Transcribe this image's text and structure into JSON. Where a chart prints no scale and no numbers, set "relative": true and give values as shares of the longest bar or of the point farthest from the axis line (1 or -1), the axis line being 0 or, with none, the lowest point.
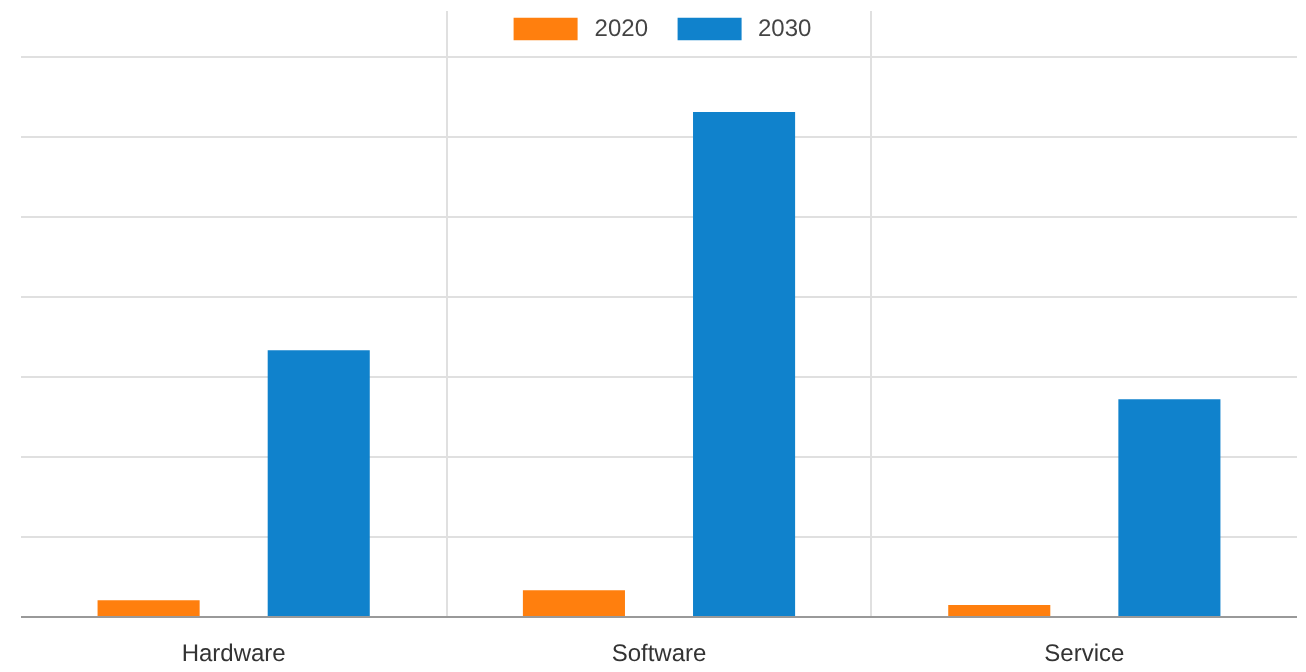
{
  "chart_data": {
    "type": "bar",
    "relative": true,
    "categories": [
      "Hardware",
      "Software",
      "Service"
    ],
    "series": [
      {
        "name": "2020",
        "color": "#ff7f0e",
        "values": [
          0.033,
          0.053,
          0.024
        ]
      },
      {
        "name": "2030",
        "color": "#1082cc",
        "values": [
          0.528,
          1,
          0.431
        ]
      }
    ],
    "grid": true,
    "legend": "top"
  }
}
